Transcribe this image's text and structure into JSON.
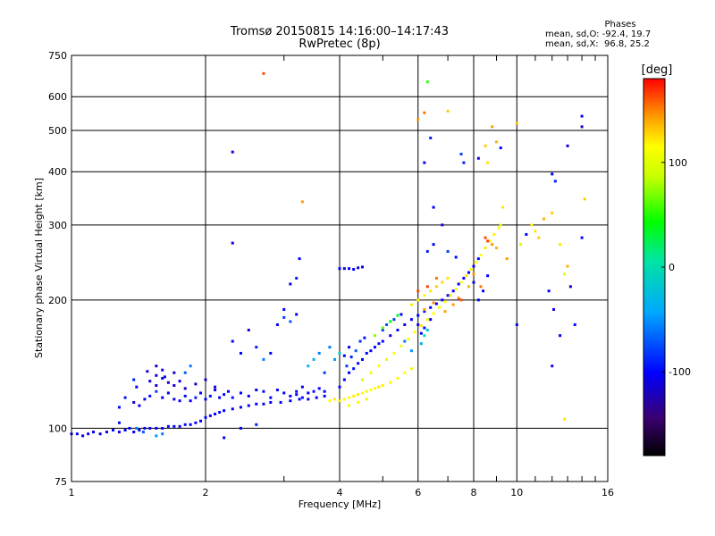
{
  "title": {
    "line1": "Tromsø 20150815 14:16:00–14:17:43",
    "line2": "RwPretec (8p)"
  },
  "phases_box": {
    "title": "Phases",
    "line_o": "mean, sd,O: -92.4, 19.7",
    "line_x": "mean, sd,X:  96.8, 25.2"
  },
  "colorbar": {
    "unit_label": "[deg]",
    "ticks": [
      {
        "value": 100,
        "label": "100"
      },
      {
        "value": 0,
        "label": "0"
      },
      {
        "value": -100,
        "label": "-100"
      }
    ],
    "range": [
      -180,
      180
    ]
  },
  "colors": {
    "grid": "#000000",
    "background": "#ffffff"
  },
  "chart_data": {
    "type": "scatter",
    "xlabel": "Frequency [MHz]",
    "ylabel": "Stationary phase Virtual Height [km]",
    "xscale": "log",
    "yscale": "log",
    "xlim": [
      1,
      16
    ],
    "ylim": [
      75,
      750
    ],
    "xticks": [
      {
        "value": 1,
        "label": "1"
      },
      {
        "value": 2,
        "label": "2"
      },
      {
        "value": 4,
        "label": "4"
      },
      {
        "value": 6,
        "label": "6"
      },
      {
        "value": 8,
        "label": "8"
      },
      {
        "value": 10,
        "label": "10"
      },
      {
        "value": 16,
        "label": "16"
      }
    ],
    "yticks": [
      {
        "value": 75,
        "label": "75"
      },
      {
        "value": 100,
        "label": "100"
      },
      {
        "value": 200,
        "label": "200"
      },
      {
        "value": 300,
        "label": "300"
      },
      {
        "value": 400,
        "label": "400"
      },
      {
        "value": 500,
        "label": "500"
      },
      {
        "value": 600,
        "label": "600"
      },
      {
        "value": 750,
        "label": "750"
      }
    ],
    "grid": true,
    "points": [
      [
        1.0,
        97,
        -110
      ],
      [
        1.03,
        97,
        -108
      ],
      [
        1.06,
        96,
        -112
      ],
      [
        1.09,
        97,
        -105
      ],
      [
        1.12,
        98,
        -108
      ],
      [
        1.16,
        97,
        -110
      ],
      [
        1.2,
        98,
        -105
      ],
      [
        1.24,
        99,
        -100
      ],
      [
        1.28,
        98,
        -108
      ],
      [
        1.32,
        99,
        -102
      ],
      [
        1.35,
        100,
        -100
      ],
      [
        1.38,
        98,
        -105
      ],
      [
        1.42,
        99,
        -110
      ],
      [
        1.46,
        100,
        -100
      ],
      [
        1.5,
        100,
        -105
      ],
      [
        1.55,
        100,
        -100
      ],
      [
        1.6,
        100,
        -102
      ],
      [
        1.65,
        101,
        -98
      ],
      [
        1.7,
        101,
        -100
      ],
      [
        1.75,
        101,
        -104
      ],
      [
        1.8,
        102,
        -98
      ],
      [
        1.85,
        102,
        -100
      ],
      [
        1.9,
        103,
        -100
      ],
      [
        1.95,
        104,
        -100
      ],
      [
        2.0,
        106,
        -98
      ],
      [
        2.05,
        107,
        -100
      ],
      [
        2.1,
        108,
        -100
      ],
      [
        2.15,
        109,
        -102
      ],
      [
        2.2,
        110,
        -100
      ],
      [
        2.3,
        111,
        -105
      ],
      [
        2.4,
        112,
        -100
      ],
      [
        2.5,
        113,
        -100
      ],
      [
        2.6,
        114,
        -102
      ],
      [
        2.7,
        114,
        -105
      ],
      [
        2.8,
        115,
        -100
      ],
      [
        2.95,
        115,
        -98
      ],
      [
        3.1,
        116,
        -100
      ],
      [
        3.25,
        117,
        -102
      ],
      [
        3.4,
        117,
        -100
      ],
      [
        3.55,
        118,
        -100
      ],
      [
        3.7,
        119,
        -100
      ],
      [
        1.28,
        112,
        -100
      ],
      [
        1.32,
        118,
        -95
      ],
      [
        1.38,
        115,
        -110
      ],
      [
        1.42,
        113,
        -105
      ],
      [
        1.46,
        117,
        -100
      ],
      [
        1.5,
        119,
        -95
      ],
      [
        1.55,
        122,
        -80
      ],
      [
        1.6,
        118,
        -100
      ],
      [
        1.65,
        121,
        -105
      ],
      [
        1.7,
        117,
        -110
      ],
      [
        1.75,
        116,
        -100
      ],
      [
        1.8,
        119,
        -95
      ],
      [
        1.85,
        116,
        -100
      ],
      [
        1.9,
        118,
        -90
      ],
      [
        1.95,
        121,
        -100
      ],
      [
        2.0,
        117,
        -100
      ],
      [
        2.05,
        119,
        -95
      ],
      [
        2.1,
        123,
        -100
      ],
      [
        2.15,
        118,
        -105
      ],
      [
        2.2,
        120,
        -100
      ],
      [
        2.25,
        122,
        -100
      ],
      [
        2.3,
        118,
        -95
      ],
      [
        2.4,
        121,
        -100
      ],
      [
        2.5,
        119,
        -105
      ],
      [
        2.6,
        123,
        -100
      ],
      [
        2.7,
        122,
        -95
      ],
      [
        2.8,
        118,
        -100
      ],
      [
        2.9,
        123,
        -100
      ],
      [
        3.0,
        121,
        -105
      ],
      [
        3.1,
        119,
        -100
      ],
      [
        3.2,
        122,
        -100
      ],
      [
        3.3,
        118,
        -95
      ],
      [
        1.5,
        129,
        -115
      ],
      [
        1.55,
        126,
        -120
      ],
      [
        1.6,
        131,
        -118
      ],
      [
        1.65,
        128,
        -122
      ],
      [
        1.7,
        126,
        -115
      ],
      [
        1.75,
        129,
        -110
      ],
      [
        1.8,
        124,
        -120
      ],
      [
        1.9,
        127,
        -118
      ],
      [
        2.0,
        130,
        -115
      ],
      [
        2.1,
        125,
        -110
      ],
      [
        1.48,
        136,
        -120
      ],
      [
        1.55,
        133,
        -115
      ],
      [
        1.6,
        137,
        -110
      ],
      [
        1.4,
        125,
        -100
      ],
      [
        1.38,
        130,
        -90
      ],
      [
        1.62,
        132,
        -100
      ],
      [
        1.55,
        140,
        -125
      ],
      [
        1.7,
        135,
        -118
      ],
      [
        3.8,
        116,
        100
      ],
      [
        3.9,
        117,
        105
      ],
      [
        4.0,
        116,
        110
      ],
      [
        4.1,
        117,
        98
      ],
      [
        4.2,
        118,
        100
      ],
      [
        4.3,
        119,
        105
      ],
      [
        4.4,
        120,
        110
      ],
      [
        4.5,
        121,
        100
      ],
      [
        4.6,
        122,
        95
      ],
      [
        4.7,
        123,
        100
      ],
      [
        4.8,
        124,
        100
      ],
      [
        4.9,
        125,
        110
      ],
      [
        5.0,
        126,
        105
      ],
      [
        5.2,
        128,
        100
      ],
      [
        5.4,
        131,
        98
      ],
      [
        5.6,
        135,
        100
      ],
      [
        5.8,
        138,
        105
      ],
      [
        4.2,
        113,
        95
      ],
      [
        4.4,
        115,
        100
      ],
      [
        4.6,
        117,
        105
      ],
      [
        4.0,
        125,
        -100
      ],
      [
        4.1,
        130,
        -105
      ],
      [
        4.2,
        135,
        -100
      ],
      [
        4.3,
        138,
        -95
      ],
      [
        4.4,
        142,
        -100
      ],
      [
        4.5,
        145,
        -100
      ],
      [
        4.6,
        150,
        -105
      ],
      [
        4.7,
        152,
        -100
      ],
      [
        4.8,
        155,
        -100
      ],
      [
        4.9,
        158,
        -95
      ],
      [
        5.0,
        160,
        -100
      ],
      [
        5.2,
        165,
        -100
      ],
      [
        5.4,
        170,
        -100
      ],
      [
        5.6,
        175,
        -105
      ],
      [
        5.8,
        180,
        -100
      ],
      [
        6.0,
        184,
        -100
      ],
      [
        6.2,
        188,
        -95
      ],
      [
        6.4,
        192,
        -100
      ],
      [
        6.6,
        196,
        -100
      ],
      [
        6.8,
        200,
        -100
      ],
      [
        7.0,
        205,
        -95
      ],
      [
        7.2,
        210,
        -100
      ],
      [
        7.4,
        218,
        -100
      ],
      [
        7.6,
        225,
        -105
      ],
      [
        7.8,
        232,
        -100
      ],
      [
        8.0,
        240,
        -100
      ],
      [
        8.2,
        250,
        -95
      ],
      [
        4.15,
        140,
        -80
      ],
      [
        4.25,
        147,
        -90
      ],
      [
        4.35,
        152,
        -70
      ],
      [
        4.45,
        160,
        -85
      ],
      [
        4.55,
        163,
        -95
      ],
      [
        4.1,
        148,
        -100
      ],
      [
        4.2,
        155,
        -105
      ],
      [
        5.0,
        170,
        -85
      ],
      [
        5.1,
        175,
        -75
      ],
      [
        5.3,
        180,
        -80
      ],
      [
        5.5,
        185,
        -100
      ],
      [
        4.5,
        130,
        90
      ],
      [
        4.7,
        135,
        95
      ],
      [
        4.9,
        140,
        100
      ],
      [
        5.1,
        145,
        105
      ],
      [
        5.3,
        150,
        100
      ],
      [
        5.5,
        156,
        95
      ],
      [
        5.7,
        162,
        100
      ],
      [
        5.9,
        168,
        100
      ],
      [
        6.1,
        174,
        110
      ],
      [
        6.3,
        180,
        105
      ],
      [
        6.5,
        186,
        100
      ],
      [
        6.7,
        192,
        95
      ],
      [
        6.9,
        198,
        100
      ],
      [
        7.1,
        205,
        105
      ],
      [
        7.3,
        212,
        100
      ],
      [
        7.5,
        220,
        100
      ],
      [
        7.7,
        228,
        110
      ],
      [
        7.9,
        236,
        105
      ],
      [
        8.1,
        245,
        100
      ],
      [
        8.3,
        255,
        100
      ],
      [
        8.5,
        265,
        110
      ],
      [
        8.7,
        275,
        100
      ],
      [
        8.9,
        285,
        105
      ],
      [
        9.1,
        295,
        100
      ],
      [
        5.8,
        195,
        110
      ],
      [
        6.0,
        200,
        105
      ],
      [
        6.2,
        205,
        100
      ],
      [
        6.4,
        210,
        110
      ],
      [
        6.6,
        215,
        120
      ],
      [
        6.8,
        220,
        115
      ],
      [
        7.0,
        225,
        110
      ],
      [
        6.2,
        190,
        140
      ],
      [
        6.5,
        197,
        145
      ],
      [
        6.9,
        188,
        135
      ],
      [
        7.2,
        195,
        140
      ],
      [
        7.4,
        202,
        150
      ],
      [
        8.5,
        280,
        160
      ],
      [
        8.6,
        275,
        165
      ],
      [
        8.8,
        270,
        140
      ],
      [
        9.0,
        265,
        130
      ],
      [
        6.0,
        210,
        160
      ],
      [
        6.3,
        215,
        165
      ],
      [
        6.6,
        225,
        150
      ],
      [
        4.8,
        165,
        60
      ],
      [
        5.0,
        172,
        50
      ],
      [
        5.2,
        178,
        30
      ],
      [
        5.4,
        184,
        20
      ],
      [
        6.2,
        165,
        0
      ],
      [
        6.3,
        170,
        -30
      ],
      [
        5.6,
        160,
        -60
      ],
      [
        5.8,
        152,
        -50
      ],
      [
        6.1,
        158,
        -40
      ],
      [
        4.0,
        150,
        -20
      ],
      [
        3.9,
        145,
        -50
      ],
      [
        3.8,
        155,
        -60
      ],
      [
        3.2,
        120,
        -100
      ],
      [
        3.3,
        125,
        -105
      ],
      [
        3.4,
        121,
        -100
      ],
      [
        3.5,
        122,
        -95
      ],
      [
        3.6,
        124,
        -100
      ],
      [
        3.7,
        122,
        -100
      ],
      [
        3.1,
        178,
        -70
      ],
      [
        3.0,
        182,
        -80
      ],
      [
        2.9,
        175,
        -100
      ],
      [
        3.2,
        185,
        -100
      ],
      [
        2.3,
        160,
        -100
      ],
      [
        2.5,
        170,
        -110
      ],
      [
        2.6,
        155,
        -90
      ],
      [
        2.4,
        150,
        -100
      ],
      [
        2.7,
        145,
        -60
      ],
      [
        2.8,
        150,
        -100
      ],
      [
        3.4,
        140,
        -40
      ],
      [
        3.5,
        145,
        -40
      ],
      [
        3.6,
        150,
        -60
      ],
      [
        3.7,
        135,
        -80
      ],
      [
        4.0,
        237,
        -100
      ],
      [
        4.1,
        237,
        -110
      ],
      [
        4.2,
        237,
        -100
      ],
      [
        4.3,
        236,
        -100
      ],
      [
        4.4,
        238,
        -105
      ],
      [
        4.5,
        239,
        -100
      ],
      [
        2.3,
        445,
        -100
      ],
      [
        2.3,
        272,
        -110
      ],
      [
        2.7,
        680,
        160
      ],
      [
        6.3,
        650,
        40
      ],
      [
        6.4,
        480,
        -90
      ],
      [
        6.2,
        420,
        -100
      ],
      [
        6.0,
        530,
        140
      ],
      [
        6.2,
        550,
        150
      ],
      [
        7.0,
        555,
        120
      ],
      [
        7.5,
        440,
        -80
      ],
      [
        7.6,
        420,
        -90
      ],
      [
        8.2,
        430,
        -110
      ],
      [
        8.5,
        460,
        120
      ],
      [
        8.8,
        510,
        140
      ],
      [
        9.0,
        470,
        130
      ],
      [
        8.6,
        420,
        110
      ],
      [
        9.2,
        455,
        -100
      ],
      [
        10.0,
        520,
        120
      ],
      [
        14.0,
        540,
        -100
      ],
      [
        14.0,
        510,
        -120
      ],
      [
        13.0,
        460,
        -110
      ],
      [
        12.0,
        395,
        -100
      ],
      [
        12.2,
        380,
        -90
      ],
      [
        10.8,
        300,
        100
      ],
      [
        11.0,
        290,
        110
      ],
      [
        11.5,
        310,
        130
      ],
      [
        11.2,
        280,
        120
      ],
      [
        10.5,
        285,
        -100
      ],
      [
        10.2,
        270,
        80
      ],
      [
        12.0,
        320,
        120
      ],
      [
        12.5,
        270,
        110
      ],
      [
        13.0,
        240,
        130
      ],
      [
        12.8,
        230,
        90
      ],
      [
        11.8,
        210,
        -100
      ],
      [
        12.1,
        190,
        -110
      ],
      [
        12.5,
        165,
        -100
      ],
      [
        13.5,
        175,
        -100
      ],
      [
        13.2,
        215,
        -110
      ],
      [
        14.0,
        280,
        -100
      ],
      [
        14.2,
        345,
        120
      ],
      [
        9.5,
        250,
        140
      ],
      [
        9.3,
        330,
        110
      ],
      [
        9.2,
        300,
        90
      ],
      [
        10.0,
        175,
        -100
      ],
      [
        12.0,
        140,
        -110
      ],
      [
        12.8,
        105,
        110
      ],
      [
        8.0,
        220,
        -110
      ],
      [
        8.2,
        200,
        -100
      ],
      [
        8.4,
        210,
        -105
      ],
      [
        8.6,
        228,
        -100
      ],
      [
        6.0,
        175,
        -110
      ],
      [
        6.1,
        167,
        -100
      ],
      [
        6.2,
        172,
        -95
      ],
      [
        6.4,
        180,
        -100
      ],
      [
        6.5,
        330,
        -100
      ],
      [
        6.8,
        300,
        -110
      ],
      [
        6.3,
        260,
        -90
      ],
      [
        6.5,
        270,
        -100
      ],
      [
        7.0,
        260,
        -80
      ],
      [
        7.3,
        252,
        -100
      ],
      [
        3.3,
        340,
        140
      ],
      [
        3.25,
        250,
        -100
      ],
      [
        3.2,
        225,
        -90
      ],
      [
        3.1,
        218,
        -110
      ],
      [
        3.0,
        190,
        -100
      ],
      [
        2.4,
        100,
        -100
      ],
      [
        2.2,
        95,
        -100
      ],
      [
        2.6,
        102,
        -90
      ],
      [
        1.8,
        135,
        -70
      ],
      [
        1.85,
        140,
        -60
      ],
      [
        1.6,
        97,
        -60
      ],
      [
        1.55,
        96,
        -50
      ],
      [
        1.45,
        98,
        -70
      ],
      [
        1.4,
        100,
        -60
      ],
      [
        1.28,
        103,
        -100
      ],
      [
        8.0,
        230,
        140
      ],
      [
        8.3,
        215,
        150
      ],
      [
        7.8,
        215,
        130
      ],
      [
        7.5,
        200,
        160
      ]
    ]
  }
}
